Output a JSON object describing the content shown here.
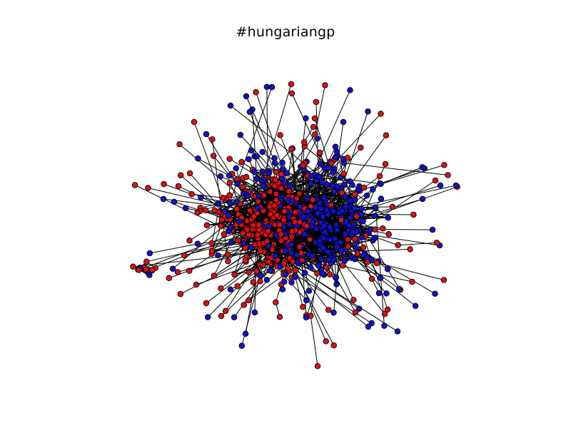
{
  "figure": {
    "title": "#hungariangp"
  },
  "colors": {
    "background": "#ffffff",
    "node_group_a": "#dd1111",
    "node_group_b": "#1111cc",
    "node_outline": "#000000",
    "edge": "#000000"
  },
  "graph": {
    "node_groups": [
      "red",
      "blue"
    ]
  }
}
